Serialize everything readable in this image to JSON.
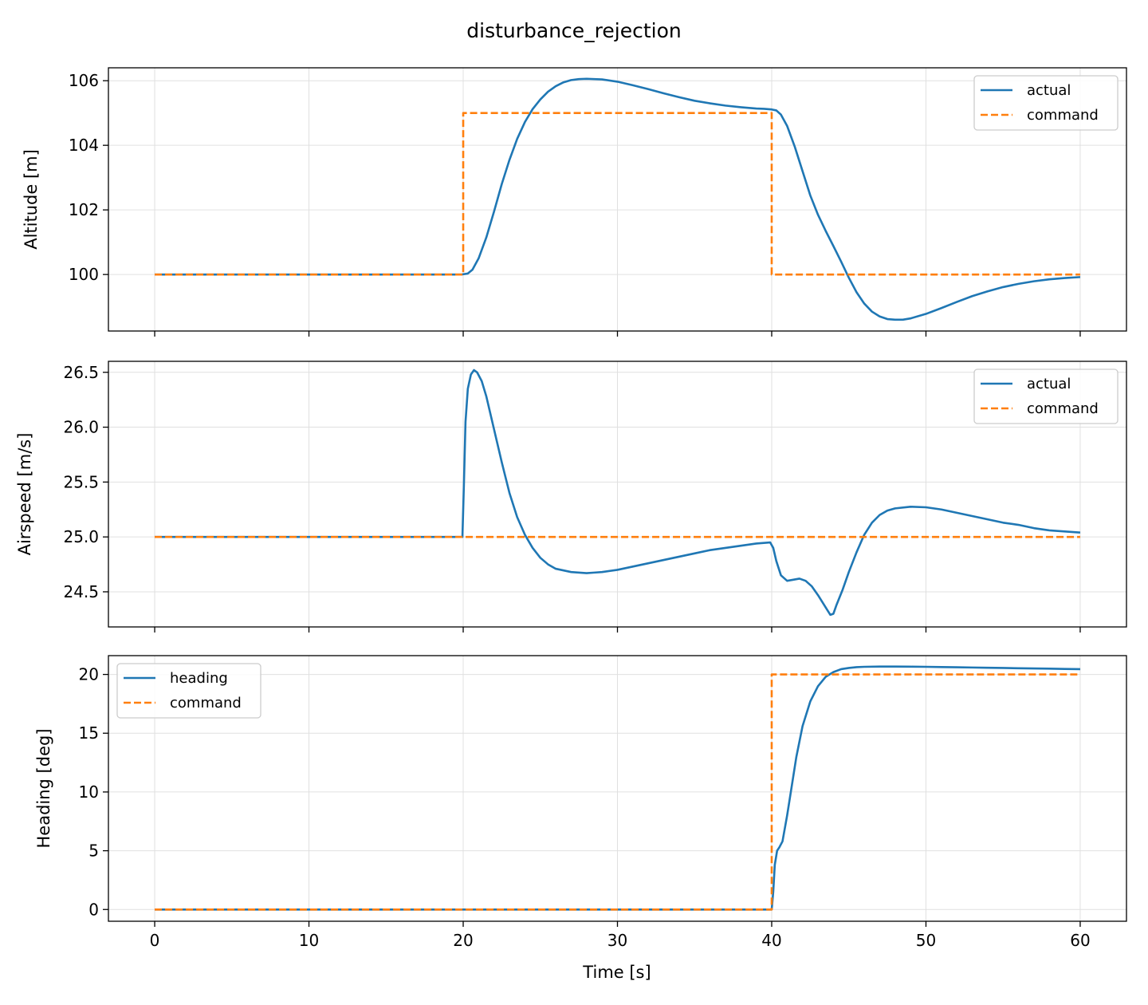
{
  "figure": {
    "title": "disturbance_rejection",
    "xlabel": "Time [s]"
  },
  "colors": {
    "actual": "#1f77b4",
    "command": "#ff7f0e",
    "grid": "#e0e0e0"
  },
  "chart_data": [
    {
      "type": "line",
      "ylabel": "Altitude [m]",
      "xlim": [
        -3,
        63
      ],
      "ylim": [
        98.25,
        106.4
      ],
      "xticks": [
        0,
        10,
        20,
        30,
        40,
        50,
        60
      ],
      "yticks": [
        100,
        102,
        104,
        106
      ],
      "grid": true,
      "legend_position": "top-right",
      "series": [
        {
          "name": "actual",
          "style": "solid",
          "x": [
            0,
            19.9,
            20.3,
            20.6,
            21.0,
            21.5,
            22.0,
            22.5,
            23.0,
            23.5,
            24.0,
            24.5,
            25.0,
            25.5,
            26.0,
            26.5,
            27.0,
            27.5,
            28.0,
            29.0,
            30.0,
            31.0,
            32.0,
            33.0,
            34.0,
            35.0,
            36.0,
            37.0,
            38.0,
            39.0,
            39.5,
            40.0,
            40.3,
            40.6,
            41.0,
            41.5,
            42.0,
            42.5,
            43.0,
            43.5,
            44.0,
            44.5,
            45.0,
            45.5,
            46.0,
            46.5,
            47.0,
            47.5,
            48.0,
            48.5,
            49.0,
            50.0,
            51.0,
            52.0,
            53.0,
            54.0,
            55.0,
            56.0,
            57.0,
            58.0,
            59.0,
            60.0
          ],
          "y": [
            100.0,
            100.0,
            100.03,
            100.15,
            100.5,
            101.15,
            101.95,
            102.8,
            103.55,
            104.2,
            104.72,
            105.12,
            105.42,
            105.66,
            105.83,
            105.95,
            106.02,
            106.05,
            106.06,
            106.04,
            105.97,
            105.86,
            105.74,
            105.61,
            105.49,
            105.38,
            105.3,
            105.23,
            105.18,
            105.14,
            105.13,
            105.11,
            105.08,
            104.95,
            104.6,
            103.95,
            103.2,
            102.45,
            101.85,
            101.35,
            100.88,
            100.4,
            99.9,
            99.45,
            99.1,
            98.85,
            98.7,
            98.62,
            98.6,
            98.6,
            98.64,
            98.78,
            98.96,
            99.15,
            99.33,
            99.48,
            99.61,
            99.71,
            99.79,
            99.85,
            99.89,
            99.92
          ]
        },
        {
          "name": "command",
          "style": "dashed",
          "x": [
            0,
            20,
            20,
            40,
            40,
            60
          ],
          "y": [
            100,
            100,
            105,
            105,
            100,
            100
          ]
        }
      ]
    },
    {
      "type": "line",
      "ylabel": "Airspeed [m/s]",
      "xlim": [
        -3,
        63
      ],
      "ylim": [
        24.18,
        26.6
      ],
      "xticks": [
        0,
        10,
        20,
        30,
        40,
        50,
        60
      ],
      "yticks": [
        24.5,
        25.0,
        25.5,
        26.0,
        26.5
      ],
      "grid": true,
      "legend_position": "top-right",
      "series": [
        {
          "name": "actual",
          "style": "solid",
          "x": [
            0,
            19.95,
            20.05,
            20.15,
            20.3,
            20.5,
            20.7,
            20.9,
            21.2,
            21.5,
            22.0,
            22.5,
            23.0,
            23.5,
            24.0,
            24.5,
            25.0,
            25.5,
            26.0,
            27.0,
            28.0,
            28.5,
            29.0,
            30.0,
            31.0,
            32.0,
            33.0,
            34.0,
            35.0,
            36.0,
            37.0,
            38.0,
            39.0,
            39.9,
            40.1,
            40.3,
            40.6,
            41.0,
            41.4,
            41.8,
            42.2,
            42.6,
            43.0,
            43.4,
            43.8,
            44.0,
            44.2,
            44.6,
            45.0,
            45.5,
            46.0,
            46.5,
            47.0,
            47.5,
            48.0,
            49.0,
            50.0,
            51.0,
            52.0,
            53.0,
            54.0,
            55.0,
            56.0,
            57.0,
            58.0,
            59.0,
            60.0
          ],
          "y": [
            25.0,
            25.0,
            25.5,
            26.05,
            26.35,
            26.48,
            26.52,
            26.5,
            26.42,
            26.28,
            25.98,
            25.68,
            25.4,
            25.18,
            25.02,
            24.9,
            24.81,
            24.75,
            24.71,
            24.68,
            24.67,
            24.675,
            24.68,
            24.7,
            24.73,
            24.76,
            24.79,
            24.82,
            24.85,
            24.88,
            24.9,
            24.92,
            24.94,
            24.95,
            24.9,
            24.78,
            24.65,
            24.6,
            24.61,
            24.62,
            24.6,
            24.55,
            24.47,
            24.38,
            24.29,
            24.3,
            24.38,
            24.52,
            24.68,
            24.86,
            25.02,
            25.13,
            25.2,
            25.24,
            25.26,
            25.275,
            25.27,
            25.25,
            25.22,
            25.19,
            25.16,
            25.13,
            25.11,
            25.08,
            25.06,
            25.05,
            25.04
          ]
        },
        {
          "name": "command",
          "style": "dashed",
          "x": [
            0,
            60
          ],
          "y": [
            25.0,
            25.0
          ]
        }
      ]
    },
    {
      "type": "line",
      "ylabel": "Heading [deg]",
      "xlim": [
        -3,
        63
      ],
      "ylim": [
        -1.0,
        21.6
      ],
      "xticks": [
        0,
        10,
        20,
        30,
        40,
        50,
        60
      ],
      "yticks": [
        0,
        5,
        10,
        15,
        20
      ],
      "grid": true,
      "legend_position": "top-left",
      "series": [
        {
          "name": "heading",
          "style": "solid",
          "x": [
            0,
            40.0,
            40.1,
            40.2,
            40.35,
            40.5,
            40.7,
            41.0,
            41.3,
            41.6,
            42.0,
            42.5,
            43.0,
            43.5,
            44.0,
            44.5,
            45.0,
            45.5,
            46.0,
            47.0,
            48.0,
            49.0,
            50.0,
            51.0,
            52.0,
            53.0,
            54.0,
            55.0,
            56.0,
            57.0,
            58.0,
            59.0,
            60.0
          ],
          "y": [
            0,
            0,
            1.5,
            3.8,
            5.0,
            5.3,
            5.8,
            8.0,
            10.5,
            13.0,
            15.6,
            17.7,
            19.0,
            19.8,
            20.2,
            20.45,
            20.55,
            20.62,
            20.65,
            20.67,
            20.67,
            20.66,
            20.65,
            20.63,
            20.61,
            20.59,
            20.57,
            20.55,
            20.53,
            20.51,
            20.49,
            20.47,
            20.45
          ]
        },
        {
          "name": "command",
          "style": "dashed",
          "x": [
            0,
            40,
            40,
            60
          ],
          "y": [
            0,
            0,
            20,
            20
          ]
        }
      ]
    }
  ]
}
